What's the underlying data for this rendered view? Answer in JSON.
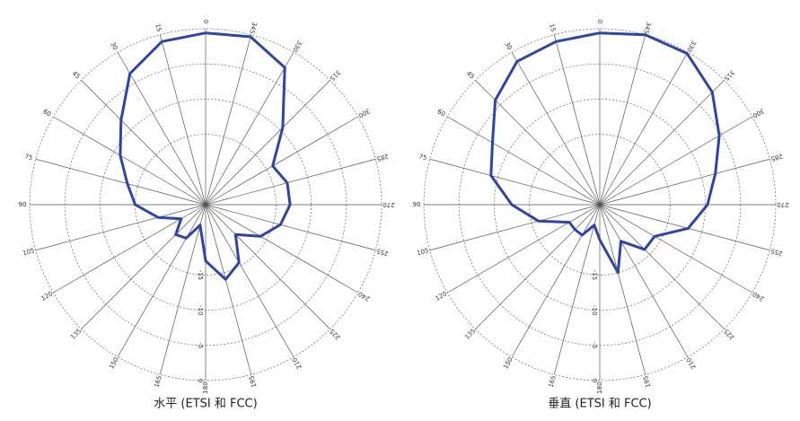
{
  "chart_data": [
    {
      "type": "polar",
      "title": "水平 (ETSI 和 FCC)",
      "color": "#2e45a6",
      "theta": [
        0,
        15,
        30,
        45,
        60,
        75,
        90,
        105,
        120,
        135,
        150,
        165,
        180,
        195,
        210,
        225,
        240,
        255,
        270,
        285,
        300,
        315,
        330,
        345
      ],
      "values": [
        -0.6,
        -1,
        -3.5,
        -8,
        -11,
        -13.5,
        -15,
        -18,
        -21,
        -19,
        -19.5,
        -22,
        -17,
        -14,
        -15.5,
        -19,
        -16,
        -14,
        -13,
        -13,
        -14,
        -9.5,
        -2.5,
        -0.3
      ],
      "thetaticks": [
        0,
        15,
        30,
        45,
        60,
        75,
        90,
        105,
        120,
        135,
        150,
        165,
        180,
        195,
        210,
        225,
        240,
        255,
        270,
        285,
        300,
        315,
        330,
        345
      ],
      "rlim": [
        -25,
        0
      ],
      "rticks": [
        -15,
        -10,
        -5,
        0
      ]
    },
    {
      "type": "polar",
      "title": "垂直 (ETSI 和 FCC)",
      "color": "#2e45a6",
      "theta": [
        0,
        15,
        30,
        45,
        60,
        75,
        90,
        105,
        120,
        135,
        150,
        165,
        180,
        195,
        210,
        225,
        240,
        255,
        270,
        285,
        300,
        315,
        330,
        345
      ],
      "values": [
        -0.6,
        -1,
        -1.5,
        -4,
        -7.4,
        -9,
        -12.5,
        -16,
        -20,
        -20,
        -20,
        -22,
        -20,
        -15,
        -19,
        -16,
        -16,
        -12,
        -9.7,
        -8,
        -5.4,
        -2.4,
        -0.2,
        0
      ],
      "thetaticks": [
        0,
        15,
        30,
        45,
        60,
        75,
        90,
        105,
        120,
        135,
        150,
        165,
        180,
        195,
        210,
        225,
        240,
        255,
        270,
        285,
        300,
        315,
        330,
        345
      ],
      "rlim": [
        -25,
        0
      ],
      "rticks": [
        -15,
        -10,
        -5,
        0
      ]
    }
  ]
}
